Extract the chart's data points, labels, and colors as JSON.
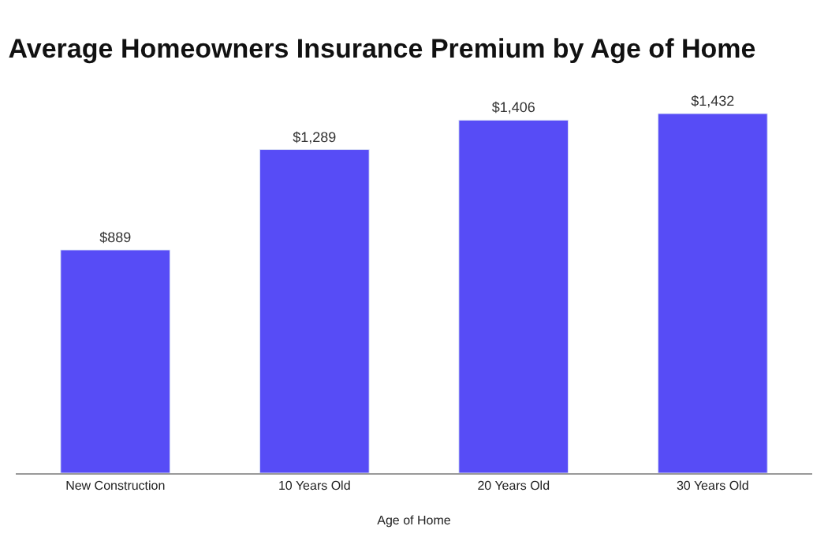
{
  "chart_data": {
    "type": "bar",
    "title": "Average Homeowners Insurance Premium by Age of Home",
    "xlabel": "Age of Home",
    "categories": [
      "New Construction",
      "10 Years Old",
      "20 Years Old",
      "30 Years Old"
    ],
    "values": [
      889,
      1289,
      1406,
      1432
    ],
    "value_labels": [
      "$889",
      "$1,289",
      "$1,406",
      "$1,432"
    ],
    "color": "#574cf6"
  }
}
